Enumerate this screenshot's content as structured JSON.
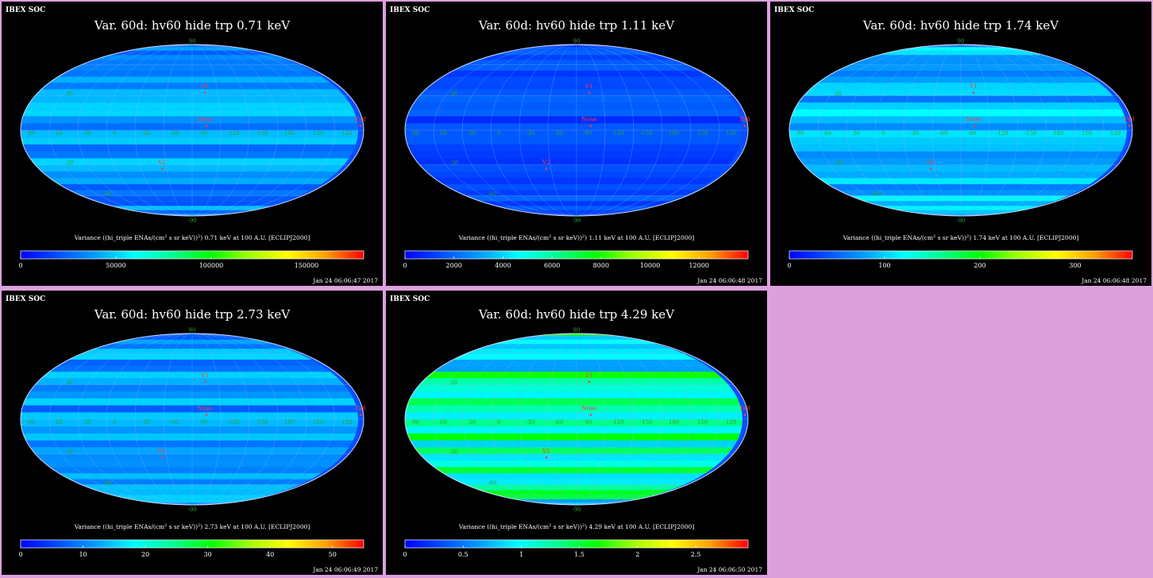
{
  "app": {
    "brand": "IBEX SOC"
  },
  "colorbar_gradient": [
    "#0000ff",
    "#0050ff",
    "#00a0ff",
    "#00ffff",
    "#00ff90",
    "#00ff00",
    "#a0ff00",
    "#ffff00",
    "#ffa000",
    "#ff0000"
  ],
  "map_labels": {
    "nose": "Nose",
    "tail": "Tail",
    "v1": "V1",
    "v2": "V2",
    "lon_ticks": [
      "60",
      "30",
      "0",
      "-30",
      "-60",
      "-90",
      "-120",
      "-150",
      "180",
      "150",
      "120",
      "90"
    ],
    "lat_ticks": [
      "90",
      "30",
      "-30",
      "-60",
      "-90"
    ]
  },
  "colors": {
    "panel_bg": "#000000",
    "page_bg": "#dda0dd",
    "map_base": "#0a4dff",
    "grid": "#9fb0ff",
    "marker": "#ff3b3b",
    "tick_green": "#2fa02f"
  },
  "chart_data": [
    {
      "type": "heatmap",
      "projection": "mollweide",
      "title": "Var. 60d: hv60 hide trp 0.71 keV",
      "colorbar_label_pre": "Variance ((hi_triple ENAs/(cm",
      "colorbar_label_sup1": "2",
      "colorbar_label_mid": " s sr keV))",
      "colorbar_label_sup2": "2",
      "colorbar_label_post": ") 0.71 keV at 100 A.U. [ECLIPJ2000]",
      "color_range": [
        0,
        180000
      ],
      "colorbar_ticks": [
        {
          "v": 0,
          "t": "0"
        },
        {
          "v": 50000,
          "t": "50000"
        },
        {
          "v": 100000,
          "t": "100000"
        },
        {
          "v": 150000,
          "t": "150000"
        }
      ],
      "timestamp": "Jan 24 06:06:47 2017",
      "base_level": 0.2,
      "hotspots": [
        {
          "lon": 90,
          "lat": 6,
          "level": 0.95
        },
        {
          "lon": 84,
          "lat": 6,
          "level": 0.6
        },
        {
          "lon": 90,
          "lat": 12,
          "level": 0.55
        },
        {
          "lon": 84,
          "lat": -24,
          "level": 0.75
        },
        {
          "lon": 78,
          "lat": -24,
          "level": 0.65
        },
        {
          "lon": -114,
          "lat": 6,
          "level": 0.95
        },
        {
          "lon": -108,
          "lat": 6,
          "level": 0.45
        },
        {
          "lon": -114,
          "lat": 12,
          "level": 0.45
        },
        {
          "lon": -126,
          "lat": 6,
          "level": 0.45
        },
        {
          "lon": 48,
          "lat": -30,
          "level": 0.45
        },
        {
          "lon": 54,
          "lat": 6,
          "level": 0.4
        },
        {
          "lon": -144,
          "lat": 0,
          "level": 0.4
        },
        {
          "lon": 60,
          "lat": -48,
          "level": 0.4
        },
        {
          "lon": -156,
          "lat": 6,
          "level": 0.35
        }
      ]
    },
    {
      "type": "heatmap",
      "projection": "mollweide",
      "title": "Var. 60d: hv60 hide trp 1.11 keV",
      "colorbar_label_pre": "Variance ((hi_triple ENAs/(cm",
      "colorbar_label_sup1": "2",
      "colorbar_label_mid": " s sr keV))",
      "colorbar_label_sup2": "2",
      "colorbar_label_post": ") 1.11 keV at 100 A.U. [ECLIPJ2000]",
      "color_range": [
        0,
        14000
      ],
      "colorbar_ticks": [
        {
          "v": 0,
          "t": "0"
        },
        {
          "v": 2000,
          "t": "2000"
        },
        {
          "v": 4000,
          "t": "4000"
        },
        {
          "v": 6000,
          "t": "6000"
        },
        {
          "v": 8000,
          "t": "8000"
        },
        {
          "v": 10000,
          "t": "10000"
        },
        {
          "v": 12000,
          "t": "12000"
        }
      ],
      "timestamp": "Jan 24 06:06:48 2017",
      "base_level": 0.1,
      "hotspots": [
        {
          "lon": 60,
          "lat": 36,
          "level": 0.95
        },
        {
          "lon": 60,
          "lat": 24,
          "level": 0.95
        },
        {
          "lon": 60,
          "lat": 42,
          "level": 0.5
        },
        {
          "lon": 60,
          "lat": 18,
          "level": 0.45
        },
        {
          "lon": -126,
          "lat": 0,
          "level": 0.3
        },
        {
          "lon": 0,
          "lat": 0,
          "level": 0.25
        }
      ]
    },
    {
      "type": "heatmap",
      "projection": "mollweide",
      "title": "Var. 60d: hv60 hide trp 1.74 keV",
      "colorbar_label_pre": "Variance ((hi_triple ENAs/(cm",
      "colorbar_label_sup1": "2",
      "colorbar_label_mid": " s sr keV))",
      "colorbar_label_sup2": "2",
      "colorbar_label_post": ") 1.74 keV at 100 A.U. [ECLIPJ2000]",
      "color_range": [
        0,
        360
      ],
      "colorbar_ticks": [
        {
          "v": 0,
          "t": "0"
        },
        {
          "v": 100,
          "t": "100"
        },
        {
          "v": 200,
          "t": "200"
        },
        {
          "v": 300,
          "t": "300"
        }
      ],
      "timestamp": "Jan 24 06:06:48 2017",
      "base_level": 0.25,
      "hotspots": [
        {
          "lon": -132,
          "lat": 0,
          "level": 0.9
        },
        {
          "lon": -132,
          "lat": -6,
          "level": 0.75
        },
        {
          "lon": -126,
          "lat": 6,
          "level": 0.55
        },
        {
          "lon": -138,
          "lat": -12,
          "level": 0.5
        },
        {
          "lon": -150,
          "lat": 0,
          "level": 0.45
        },
        {
          "lon": -120,
          "lat": -12,
          "level": 0.45
        },
        {
          "lon": 0,
          "lat": 0,
          "level": 0.45
        },
        {
          "lon": -168,
          "lat": -36,
          "level": 0.55
        }
      ]
    },
    {
      "type": "heatmap",
      "projection": "mollweide",
      "title": "Var. 60d: hv60 hide trp 2.73 keV",
      "colorbar_label_pre": "Variance ((hi_triple ENAs/(cm",
      "colorbar_label_sup1": "2",
      "colorbar_label_mid": " s sr keV))",
      "colorbar_label_sup2": "2",
      "colorbar_label_post": ") 2.73 keV at 100 A.U. [ECLIPJ2000]",
      "color_range": [
        0,
        55
      ],
      "colorbar_ticks": [
        {
          "v": 0,
          "t": "0"
        },
        {
          "v": 10,
          "t": "10"
        },
        {
          "v": 20,
          "t": "20"
        },
        {
          "v": 30,
          "t": "30"
        },
        {
          "v": 40,
          "t": "40"
        },
        {
          "v": 50,
          "t": "50"
        }
      ],
      "timestamp": "Jan 24 06:06:49 2017",
      "base_level": 0.22,
      "hotspots": [
        {
          "lon": -126,
          "lat": -18,
          "level": 0.95
        },
        {
          "lon": -132,
          "lat": -12,
          "level": 0.9
        },
        {
          "lon": -126,
          "lat": -6,
          "level": 0.55
        },
        {
          "lon": -138,
          "lat": -6,
          "level": 0.5
        },
        {
          "lon": -144,
          "lat": -12,
          "level": 0.45
        },
        {
          "lon": -120,
          "lat": 6,
          "level": 0.4
        },
        {
          "lon": -150,
          "lat": 6,
          "level": 0.4
        },
        {
          "lon": -138,
          "lat": 12,
          "level": 0.35
        }
      ]
    },
    {
      "type": "heatmap",
      "projection": "mollweide",
      "title": "Var. 60d: hv60 hide trp 4.29 keV",
      "colorbar_label_pre": "Variance ((hi_triple ENAs/(cm",
      "colorbar_label_sup1": "2",
      "colorbar_label_mid": " s sr keV))",
      "colorbar_label_sup2": "2",
      "colorbar_label_post": ") 4.29 keV at 100 A.U. [ECLIPJ2000]",
      "color_range": [
        0,
        2.95
      ],
      "colorbar_ticks": [
        {
          "v": 0,
          "t": "0"
        },
        {
          "v": 0.5,
          "t": "0.5"
        },
        {
          "v": 1,
          "t": "1"
        },
        {
          "v": 1.5,
          "t": "1.5"
        },
        {
          "v": 2,
          "t": "2"
        },
        {
          "v": 2.5,
          "t": "2.5"
        }
      ],
      "timestamp": "Jan 24 06:06:50 2017",
      "base_level": 0.4,
      "hotspots": [
        {
          "lon": -144,
          "lat": 12,
          "level": 0.95
        },
        {
          "lon": -114,
          "lat": -12,
          "level": 0.95
        },
        {
          "lon": -120,
          "lat": -24,
          "level": 0.95
        },
        {
          "lon": -108,
          "lat": -18,
          "level": 0.9
        },
        {
          "lon": -102,
          "lat": -6,
          "level": 0.9
        },
        {
          "lon": -126,
          "lat": -18,
          "level": 0.75
        },
        {
          "lon": -114,
          "lat": -6,
          "level": 0.65
        },
        {
          "lon": -132,
          "lat": 0,
          "level": 0.6
        },
        {
          "lon": -138,
          "lat": -12,
          "level": 0.6
        },
        {
          "lon": 54,
          "lat": -6,
          "level": 0.8
        },
        {
          "lon": -72,
          "lat": -48,
          "level": 0.6
        },
        {
          "lon": -6,
          "lat": 36,
          "level": 0.6
        },
        {
          "lon": 24,
          "lat": 0,
          "level": 0.55
        },
        {
          "lon": -30,
          "lat": 0,
          "level": 0.6
        },
        {
          "lon": 42,
          "lat": -42,
          "level": 0.6
        }
      ]
    }
  ]
}
